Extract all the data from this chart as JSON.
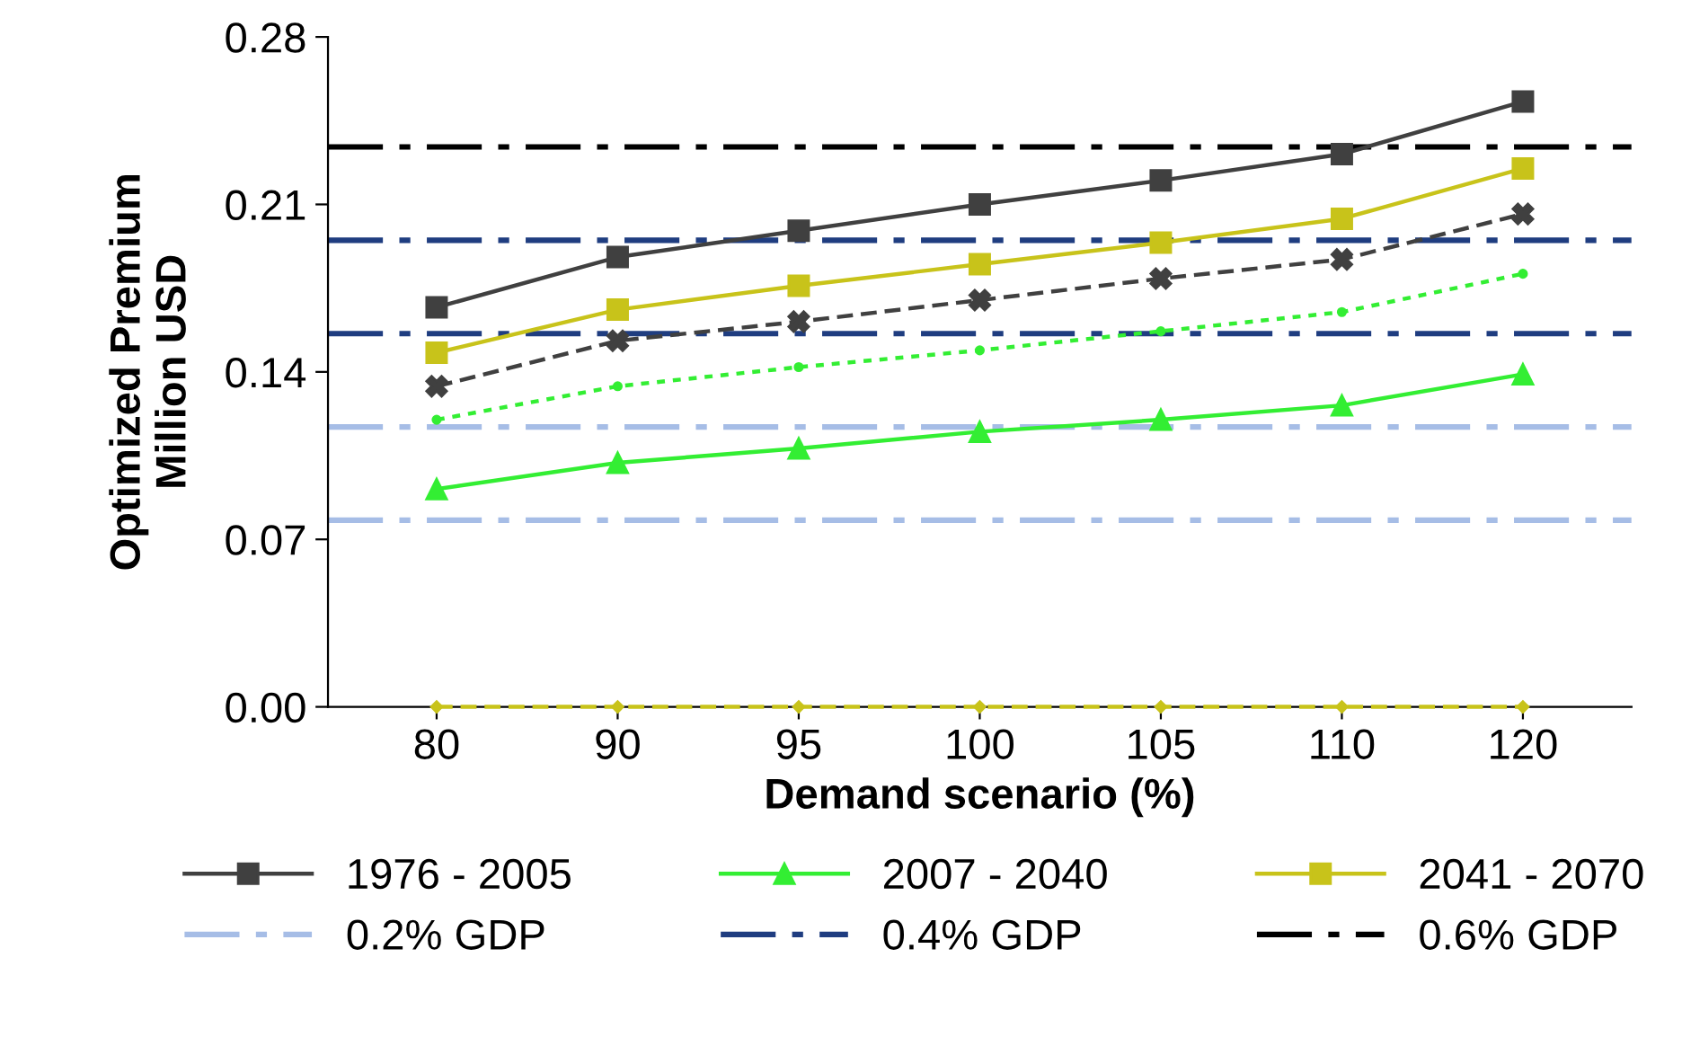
{
  "chart_data": {
    "type": "line",
    "xlabel": "Demand scenario (%)",
    "ylabel": "Optimized Premium\nMillion USD",
    "categories": [
      "80",
      "90",
      "95",
      "100",
      "105",
      "110",
      "120"
    ],
    "ylim": [
      0,
      0.28
    ],
    "yticks": [
      {
        "value": 0,
        "label": "0.00"
      },
      {
        "value": 0.07,
        "label": "0.07"
      },
      {
        "value": 0.14,
        "label": "0.14"
      },
      {
        "value": 0.21,
        "label": "0.21"
      },
      {
        "value": 0.28,
        "label": "0.28"
      }
    ],
    "grid": false,
    "legend": "bottom",
    "series": [
      {
        "name": "1976 - 2005",
        "color": "#404040",
        "marker": "square",
        "line_style": "solid",
        "values": [
          0.167,
          0.188,
          0.199,
          0.21,
          0.22,
          0.231,
          0.253
        ]
      },
      {
        "name": "2007 - 2040",
        "color": "#33ee33",
        "marker": "triangle",
        "line_style": "solid",
        "values": [
          0.091,
          0.102,
          0.108,
          0.115,
          0.12,
          0.126,
          0.139
        ]
      },
      {
        "name": "2041 - 2070",
        "color": "#c8c31a",
        "marker": "square",
        "line_style": "solid",
        "values": [
          0.148,
          0.166,
          0.176,
          0.185,
          0.194,
          0.204,
          0.225
        ]
      },
      {
        "color": "#404040",
        "marker": "cross",
        "line_style": "dashed",
        "values": [
          0.134,
          0.153,
          0.161,
          0.17,
          0.179,
          0.187,
          0.206
        ]
      },
      {
        "color": "#33ee33",
        "marker": "circle",
        "line_style": "dotted",
        "values": [
          0.12,
          0.134,
          0.142,
          0.149,
          0.157,
          0.165,
          0.181
        ]
      },
      {
        "color": "#c8c31a",
        "marker": "diamond",
        "line_style": "dashed",
        "values": [
          0,
          0,
          0,
          0,
          0,
          0,
          0
        ]
      }
    ],
    "ref_lines": [
      {
        "axis": "y",
        "value": 0.078,
        "label": "0.2% GDP",
        "color": "#a6bde6",
        "line_style": "dashdot"
      },
      {
        "axis": "y",
        "value": 0.117,
        "color": "#a6bde6",
        "line_style": "dashdot"
      },
      {
        "axis": "y",
        "value": 0.156,
        "label": "0.4% GDP",
        "color": "#1f3d80",
        "line_style": "dashdot"
      },
      {
        "axis": "y",
        "value": 0.195,
        "color": "#1f3d80",
        "line_style": "dashdot"
      },
      {
        "axis": "y",
        "value": 0.234,
        "label": "0.6% GDP",
        "color": "#000000",
        "line_style": "dashdot"
      }
    ]
  }
}
